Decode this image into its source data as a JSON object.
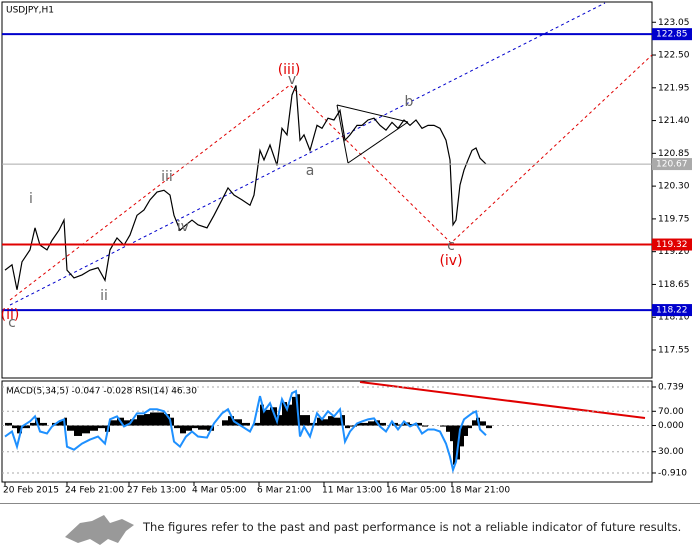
{
  "chart_data": [
    {
      "type": "line",
      "title": "USDJPY,H1",
      "color": "#000000",
      "x": [
        3,
        10,
        15,
        20,
        28,
        33,
        38,
        45,
        50,
        57,
        62,
        65,
        72,
        80,
        88,
        96,
        103,
        108,
        115,
        122,
        128,
        135,
        142,
        148,
        155,
        162,
        168,
        172,
        178,
        184,
        190,
        196,
        205,
        212,
        220,
        226,
        232,
        240,
        248,
        252,
        258,
        262,
        268,
        275,
        280,
        285,
        290,
        294,
        298,
        302,
        308,
        315,
        320,
        326,
        332,
        338,
        343,
        348,
        355,
        360,
        366,
        372,
        378,
        384,
        390,
        396,
        402,
        408,
        414,
        420,
        426,
        432,
        438,
        444,
        448,
        451,
        454,
        458,
        462,
        466,
        470,
        474,
        478,
        484
      ],
      "values": [
        118.89,
        118.98,
        118.56,
        119.03,
        119.23,
        119.6,
        119.31,
        119.23,
        119.39,
        119.56,
        119.73,
        118.89,
        118.76,
        118.81,
        118.89,
        118.93,
        118.72,
        119.23,
        119.43,
        119.31,
        119.48,
        119.81,
        119.9,
        120.07,
        120.2,
        120.23,
        120.15,
        119.81,
        119.56,
        119.65,
        119.73,
        119.65,
        119.6,
        119.81,
        120.07,
        120.27,
        120.15,
        120.07,
        119.98,
        120.15,
        120.9,
        120.74,
        120.99,
        120.65,
        121.27,
        121.16,
        121.83,
        121.99,
        121.07,
        121.16,
        120.9,
        121.32,
        121.27,
        121.44,
        121.41,
        121.57,
        121.07,
        121.16,
        121.32,
        121.32,
        121.41,
        121.44,
        121.32,
        121.24,
        121.37,
        121.27,
        121.41,
        121.32,
        121.41,
        121.27,
        121.32,
        121.32,
        121.27,
        121.07,
        120.74,
        119.65,
        119.73,
        120.32,
        120.57,
        120.74,
        120.9,
        120.94,
        120.77,
        120.67
      ],
      "xlim": [
        0,
        650
      ],
      "xticks": [
        {
          "value": 3,
          "label": "20 Feb 2015"
        },
        {
          "value": 65,
          "label": "24 Feb 21:00"
        },
        {
          "value": 127,
          "label": "27 Feb 13:00"
        },
        {
          "value": 192,
          "label": "4 Mar 05:00"
        },
        {
          "value": 257,
          "label": "6 Mar 21:00"
        },
        {
          "value": 322,
          "label": "11 Mar 13:00"
        },
        {
          "value": 386,
          "label": "16 Mar 05:00"
        },
        {
          "value": 450,
          "label": "18 Mar 21:00"
        }
      ],
      "ylim": [
        117.08,
        123.39
      ],
      "yticks": [
        123.05,
        {
          "value": 122.5,
          "label": "122.50"
        },
        121.95,
        {
          "value": 121.4,
          "label": "121.40"
        },
        120.85,
        {
          "value": 120.3,
          "label": "120.30"
        },
        119.75,
        {
          "value": 119.2,
          "label": "119.20"
        },
        118.65,
        {
          "value": 118.1,
          "label": "118.10"
        },
        117.55
      ],
      "levels": [
        {
          "value": 122.85,
          "color": "#0000cc"
        },
        {
          "value": 120.67,
          "color": "#aaaaaa"
        },
        {
          "value": 119.32,
          "color": "#e00000"
        },
        {
          "value": 118.22,
          "color": "#0000cc"
        }
      ],
      "annotations": [
        {
          "text": "(iii)",
          "color": "#e00000"
        },
        {
          "text": "v",
          "color": "#666666"
        },
        {
          "text": "b",
          "color": "#666666"
        },
        {
          "text": "a",
          "color": "#666666"
        },
        {
          "text": "iii",
          "color": "#666666"
        },
        {
          "text": "i",
          "color": "#666666"
        },
        {
          "text": "iv",
          "color": "#666666"
        },
        {
          "text": "ii",
          "color": "#666666"
        },
        {
          "text": "(ii)",
          "color": "#e00000"
        },
        {
          "text": "c",
          "color": "#666666"
        },
        {
          "text": "c",
          "color": "#666666"
        },
        {
          "text": "(iv)",
          "color": "#e00000"
        }
      ]
    },
    {
      "type": "macd",
      "label": "MACD(5,34,5) -0.047 -0.028 RSI(14) 46.30",
      "series": [
        {
          "color": "#000000",
          "values": [
            0.05,
            -0.05,
            -0.15,
            -0.05,
            0.05,
            0.15,
            0.05,
            0.0,
            0.05,
            0.1,
            0.15,
            -0.1,
            -0.2,
            -0.15,
            -0.1,
            -0.05,
            -0.12,
            0.1,
            0.15,
            0.1,
            0.12,
            0.2,
            0.22,
            0.25,
            0.25,
            0.22,
            0.15,
            -0.05,
            -0.15,
            -0.1,
            -0.05,
            -0.08,
            -0.1,
            0.0,
            0.1,
            0.18,
            0.12,
            0.05,
            0.0,
            0.05,
            0.4,
            0.3,
            0.35,
            0.2,
            0.45,
            0.4,
            0.55,
            0.6,
            0.2,
            0.2,
            0.05,
            0.15,
            0.12,
            0.18,
            0.15,
            0.2,
            -0.05,
            -0.02,
            0.05,
            0.05,
            0.08,
            0.1,
            0.05,
            0.0,
            0.05,
            0.02,
            0.06,
            0.03,
            0.05,
            -0.02,
            0.0,
            0.0,
            -0.02,
            -0.12,
            -0.3,
            -0.75,
            -0.65,
            -0.4,
            -0.2,
            -0.05,
            0.1,
            0.15,
            0.08,
            -0.05
          ]
        },
        {
          "color": "#1e90ff",
          "axis": "y2",
          "values": [
            45,
            50,
            35,
            55,
            60,
            65,
            50,
            48,
            55,
            60,
            62,
            35,
            32,
            38,
            42,
            45,
            38,
            62,
            65,
            55,
            58,
            68,
            68,
            72,
            72,
            70,
            62,
            40,
            35,
            45,
            50,
            45,
            44,
            58,
            68,
            72,
            60,
            55,
            50,
            58,
            85,
            70,
            78,
            60,
            82,
            72,
            88,
            90,
            45,
            55,
            45,
            68,
            62,
            70,
            65,
            72,
            40,
            50,
            58,
            60,
            62,
            63,
            55,
            50,
            60,
            52,
            60,
            55,
            58,
            48,
            52,
            52,
            50,
            38,
            25,
            12,
            20,
            52,
            62,
            65,
            68,
            70,
            52,
            46.3
          ]
        }
      ],
      "ylim": [
        -1.083,
        0.854
      ],
      "yticks": [
        0.739,
        {
          "value": 0,
          "label": "0.000"
        },
        {
          "value": -0.91,
          "label": "-0.910"
        }
      ],
      "y2lim": [
        0,
        100
      ],
      "y2ticks": [
        {
          "value": 70,
          "label": "70.00"
        },
        {
          "value": 30,
          "label": "30.00"
        }
      ]
    }
  ],
  "footer": {
    "disclaimer": "The figures refer to the past and past performance is not a reliable indicator of future results."
  }
}
